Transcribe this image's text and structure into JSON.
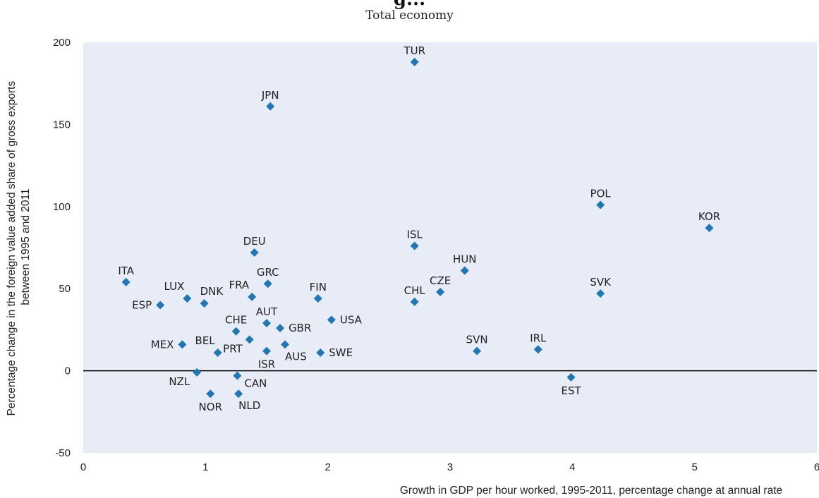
{
  "chart_data": {
    "type": "scatter",
    "title": "g...",
    "subtitle": "Total economy",
    "xlabel": "Growth in GDP per hour worked, 1995-2011, percentage change at annual rate",
    "ylabel": [
      "Percentage change in the foreign value added share of gross exports",
      "between 1995 and 2011"
    ],
    "xlim": [
      0,
      6
    ],
    "ylim": [
      -50,
      200
    ],
    "xticks": [
      0,
      1,
      2,
      3,
      4,
      5,
      6
    ],
    "yticks": [
      -50,
      0,
      50,
      100,
      150,
      200
    ],
    "grid": false,
    "marker_color": "#1f77b4",
    "points": [
      {
        "label": "TUR",
        "x": 2.71,
        "y": 188,
        "pos": "above"
      },
      {
        "label": "JPN",
        "x": 1.53,
        "y": 161,
        "pos": "above"
      },
      {
        "label": "POL",
        "x": 4.23,
        "y": 101,
        "pos": "above"
      },
      {
        "label": "KOR",
        "x": 5.12,
        "y": 87,
        "pos": "above"
      },
      {
        "label": "ISL",
        "x": 2.71,
        "y": 76,
        "pos": "above"
      },
      {
        "label": "DEU",
        "x": 1.4,
        "y": 72,
        "pos": "above"
      },
      {
        "label": "HUN",
        "x": 3.12,
        "y": 61,
        "pos": "above"
      },
      {
        "label": "ITA",
        "x": 0.35,
        "y": 54,
        "pos": "above"
      },
      {
        "label": "GRC",
        "x": 1.51,
        "y": 53,
        "pos": "above"
      },
      {
        "label": "CZE",
        "x": 2.92,
        "y": 48,
        "pos": "above"
      },
      {
        "label": "SVK",
        "x": 4.23,
        "y": 47,
        "pos": "above"
      },
      {
        "label": "FRA",
        "x": 1.38,
        "y": 45,
        "pos": "above-left"
      },
      {
        "label": "FIN",
        "x": 1.92,
        "y": 44,
        "pos": "above"
      },
      {
        "label": "LUX",
        "x": 0.85,
        "y": 44,
        "pos": "above-left"
      },
      {
        "label": "CHL",
        "x": 2.71,
        "y": 42,
        "pos": "above"
      },
      {
        "label": "DNK",
        "x": 0.99,
        "y": 41,
        "pos": "above-right"
      },
      {
        "label": "ESP",
        "x": 0.63,
        "y": 40,
        "pos": "left"
      },
      {
        "label": "USA",
        "x": 2.03,
        "y": 31,
        "pos": "right"
      },
      {
        "label": "AUT",
        "x": 1.5,
        "y": 29,
        "pos": "above"
      },
      {
        "label": "GBR",
        "x": 1.61,
        "y": 26,
        "pos": "right"
      },
      {
        "label": "CHE",
        "x": 1.25,
        "y": 24,
        "pos": "above"
      },
      {
        "label": "PRT",
        "x": 1.36,
        "y": 19,
        "pos": "below-left"
      },
      {
        "label": "AUS",
        "x": 1.65,
        "y": 16,
        "pos": "below-right"
      },
      {
        "label": "MEX",
        "x": 0.81,
        "y": 16,
        "pos": "left"
      },
      {
        "label": "IRL",
        "x": 3.72,
        "y": 13,
        "pos": "above"
      },
      {
        "label": "SVN",
        "x": 3.22,
        "y": 12,
        "pos": "above"
      },
      {
        "label": "ISR",
        "x": 1.5,
        "y": 12,
        "pos": "below"
      },
      {
        "label": "BEL",
        "x": 1.1,
        "y": 11,
        "pos": "above-left"
      },
      {
        "label": "SWE",
        "x": 1.94,
        "y": 11,
        "pos": "right"
      },
      {
        "label": "NZL",
        "x": 0.93,
        "y": -1,
        "pos": "below-left"
      },
      {
        "label": "CAN",
        "x": 1.26,
        "y": -3,
        "pos": "right-below"
      },
      {
        "label": "EST",
        "x": 3.99,
        "y": -4,
        "pos": "below"
      },
      {
        "label": "NOR",
        "x": 1.04,
        "y": -14,
        "pos": "below"
      },
      {
        "label": "NLD",
        "x": 1.27,
        "y": -14,
        "pos": "below-right"
      }
    ]
  }
}
